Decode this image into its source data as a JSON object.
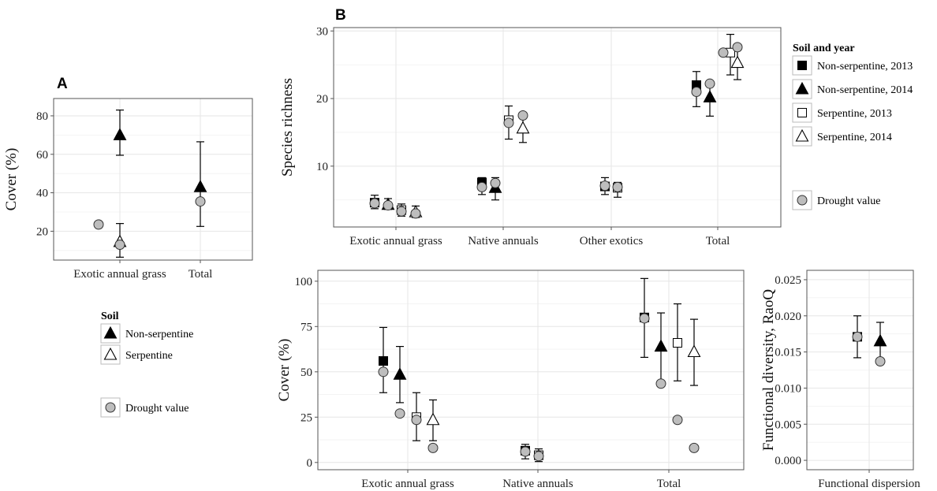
{
  "chart_data": [
    {
      "panel": "A",
      "type": "scatter",
      "ylabel": "Cover (%)",
      "xlabel": "",
      "categories": [
        "Exotic annual grass",
        "Total"
      ],
      "yticks": [
        20,
        40,
        60,
        80
      ],
      "ylim": [
        5,
        89
      ],
      "grid": true,
      "legend": {
        "title": "Soil",
        "entries": [
          {
            "label": "Non-serpentine",
            "marker": "triangle-filled"
          },
          {
            "label": "Serpentine",
            "marker": "triangle-open"
          }
        ],
        "drought_label": "Drought value"
      },
      "series": [
        {
          "name": "Non-serpentine",
          "marker": "triangle-filled",
          "points": [
            {
              "category": "Exotic annual grass",
              "y": 70,
              "lo": 59.5,
              "hi": 83
            },
            {
              "category": "Total",
              "y": 43,
              "lo": 22.5,
              "hi": 66.5
            }
          ]
        },
        {
          "name": "Serpentine",
          "marker": "triangle-open",
          "points": [
            {
              "category": "Exotic annual grass",
              "y": 14.5,
              "lo": 6.5,
              "hi": 24
            }
          ]
        },
        {
          "name": "Drought value",
          "marker": "circle-grey",
          "points": [
            {
              "category": "Exotic annual grass",
              "y": 23.5
            },
            {
              "category": "Exotic annual grass",
              "y": 13
            },
            {
              "category": "Total",
              "y": 35.5
            }
          ]
        }
      ]
    },
    {
      "panel": "B",
      "type": "scatter",
      "ylabel": "Species richness",
      "xlabel": "",
      "categories": [
        "Exotic annual grass",
        "Native annuals",
        "Other exotics",
        "Total"
      ],
      "yticks": [
        10,
        20,
        30
      ],
      "ylim": [
        1,
        30.5
      ],
      "grid": true,
      "legend": {
        "title": "Soil and year",
        "entries": [
          {
            "label": "Non-serpentine, 2013",
            "marker": "square-filled"
          },
          {
            "label": "Non-serpentine, 2014",
            "marker": "triangle-filled"
          },
          {
            "label": "Serpentine, 2013",
            "marker": "square-open"
          },
          {
            "label": "Serpentine, 2014",
            "marker": "triangle-open"
          }
        ],
        "drought_label": "Drought value"
      },
      "series": [
        {
          "name": "Non-serpentine, 2013",
          "marker": "square-filled",
          "points": [
            {
              "category": "Exotic annual grass",
              "y": 4.6,
              "lo": 3.7,
              "hi": 5.7
            },
            {
              "category": "Native annuals",
              "y": 7.6,
              "lo": 5.8,
              "hi": 8.3
            },
            {
              "category": "Other exotics",
              "y": 7.0,
              "lo": 5.8,
              "hi": 8.3
            },
            {
              "category": "Total",
              "y": 22.0,
              "lo": 18.8,
              "hi": 24.0
            }
          ]
        },
        {
          "name": "Non-serpentine, 2014",
          "marker": "triangle-filled",
          "points": [
            {
              "category": "Exotic annual grass",
              "y": 4.3,
              "lo": 3.6,
              "hi": 5.2
            },
            {
              "category": "Native annuals",
              "y": 6.8,
              "lo": 5.0,
              "hi": 8.3
            },
            {
              "category": "Total",
              "y": 20.2,
              "lo": 17.4,
              "hi": 22.6
            }
          ]
        },
        {
          "name": "Serpentine, 2013",
          "marker": "square-open",
          "points": [
            {
              "category": "Exotic annual grass",
              "y": 3.5,
              "lo": 2.6,
              "hi": 4.4
            },
            {
              "category": "Native annuals",
              "y": 16.8,
              "lo": 14.0,
              "hi": 18.9
            },
            {
              "category": "Other exotics",
              "y": 6.8,
              "lo": 5.4,
              "hi": 7.6
            },
            {
              "category": "Total",
              "y": 26.8,
              "lo": 23.5,
              "hi": 29.5
            }
          ]
        },
        {
          "name": "Serpentine, 2014",
          "marker": "triangle-open",
          "points": [
            {
              "category": "Exotic annual grass",
              "y": 3.2,
              "lo": 2.4,
              "hi": 4.1
            },
            {
              "category": "Native annuals",
              "y": 15.6,
              "lo": 13.5,
              "hi": 17.8
            },
            {
              "category": "Total",
              "y": 25.3,
              "lo": 22.8,
              "hi": 28.0
            }
          ]
        },
        {
          "name": "Drought value",
          "marker": "circle-grey",
          "points": [
            {
              "category": "Exotic annual grass",
              "y": 4.5
            },
            {
              "category": "Exotic annual grass",
              "y": 4.2
            },
            {
              "category": "Exotic annual grass",
              "y": 3.3
            },
            {
              "category": "Exotic annual grass",
              "y": 3.0
            },
            {
              "category": "Native annuals",
              "y": 6.9
            },
            {
              "category": "Native annuals",
              "y": 7.5
            },
            {
              "category": "Native annuals",
              "y": 16.4
            },
            {
              "category": "Native annuals",
              "y": 17.5
            },
            {
              "category": "Other exotics",
              "y": 7.1
            },
            {
              "category": "Other exotics",
              "y": 6.9
            },
            {
              "category": "Total",
              "y": 21.0
            },
            {
              "category": "Total",
              "y": 22.2
            },
            {
              "category": "Total",
              "y": 26.8
            },
            {
              "category": "Total",
              "y": 27.6
            }
          ]
        }
      ]
    },
    {
      "panel": "B-cover",
      "type": "scatter",
      "ylabel": "Cover (%)",
      "xlabel": "",
      "categories": [
        "Exotic annual grass",
        "Native annuals",
        "Total"
      ],
      "yticks": [
        0,
        25,
        50,
        75,
        100
      ],
      "ylim": [
        -4,
        106
      ],
      "grid": true,
      "series": [
        {
          "name": "Non-serpentine, 2013",
          "marker": "square-filled",
          "points": [
            {
              "category": "Exotic annual grass",
              "y": 56,
              "lo": 38.5,
              "hi": 74.5
            },
            {
              "category": "Native annuals",
              "y": 6.5,
              "lo": 2,
              "hi": 10
            },
            {
              "category": "Total",
              "y": 80,
              "lo": 58,
              "hi": 101.5
            }
          ]
        },
        {
          "name": "Non-serpentine, 2014",
          "marker": "triangle-filled",
          "points": [
            {
              "category": "Exotic annual grass",
              "y": 48.5,
              "lo": 33,
              "hi": 64
            },
            {
              "category": "Total",
              "y": 64,
              "lo": 45,
              "hi": 82.5
            }
          ]
        },
        {
          "name": "Serpentine, 2013",
          "marker": "square-open",
          "points": [
            {
              "category": "Exotic annual grass",
              "y": 25,
              "lo": 12,
              "hi": 38.5
            },
            {
              "category": "Native annuals",
              "y": 4,
              "lo": 0.5,
              "hi": 7.5
            },
            {
              "category": "Total",
              "y": 66,
              "lo": 45,
              "hi": 87.5
            }
          ]
        },
        {
          "name": "Serpentine, 2014",
          "marker": "triangle-open",
          "points": [
            {
              "category": "Exotic annual grass",
              "y": 23.5,
              "lo": 12,
              "hi": 34.5
            },
            {
              "category": "Total",
              "y": 61,
              "lo": 42.5,
              "hi": 79
            }
          ]
        },
        {
          "name": "Drought value",
          "marker": "circle-grey",
          "points": [
            {
              "category": "Exotic annual grass",
              "y": 50
            },
            {
              "category": "Exotic annual grass",
              "y": 27
            },
            {
              "category": "Exotic annual grass",
              "y": 23.5
            },
            {
              "category": "Exotic annual grass",
              "y": 8
            },
            {
              "category": "Native annuals",
              "y": 6
            },
            {
              "category": "Native annuals",
              "y": 3.5
            },
            {
              "category": "Total",
              "y": 79.5
            },
            {
              "category": "Total",
              "y": 43.5
            },
            {
              "category": "Total",
              "y": 23.5
            },
            {
              "category": "Total",
              "y": 8
            }
          ]
        }
      ]
    },
    {
      "panel": "B-fd",
      "type": "scatter",
      "ylabel": "Functional diversity, RaoQ",
      "xlabel": "",
      "categories": [
        "Functional dispersion"
      ],
      "yticks": [
        0.0,
        0.005,
        0.01,
        0.015,
        0.02,
        0.025
      ],
      "yticklabels": [
        "0.000",
        "0.005",
        "0.010",
        "0.015",
        "0.020",
        "0.025"
      ],
      "ylim": [
        -0.0013,
        0.0263
      ],
      "grid": true,
      "series": [
        {
          "name": "Non-serpentine, 2013",
          "marker": "square-filled",
          "points": [
            {
              "category": "Functional dispersion",
              "y": 0.0171,
              "lo": 0.0142,
              "hi": 0.02
            }
          ]
        },
        {
          "name": "Non-serpentine, 2014",
          "marker": "triangle-filled",
          "points": [
            {
              "category": "Functional dispersion",
              "y": 0.0165,
              "lo": 0.0139,
              "hi": 0.0191
            }
          ]
        },
        {
          "name": "Drought value",
          "marker": "circle-grey",
          "points": [
            {
              "category": "Functional dispersion",
              "y": 0.0171
            },
            {
              "category": "Functional dispersion",
              "y": 0.0137
            }
          ]
        }
      ]
    }
  ]
}
